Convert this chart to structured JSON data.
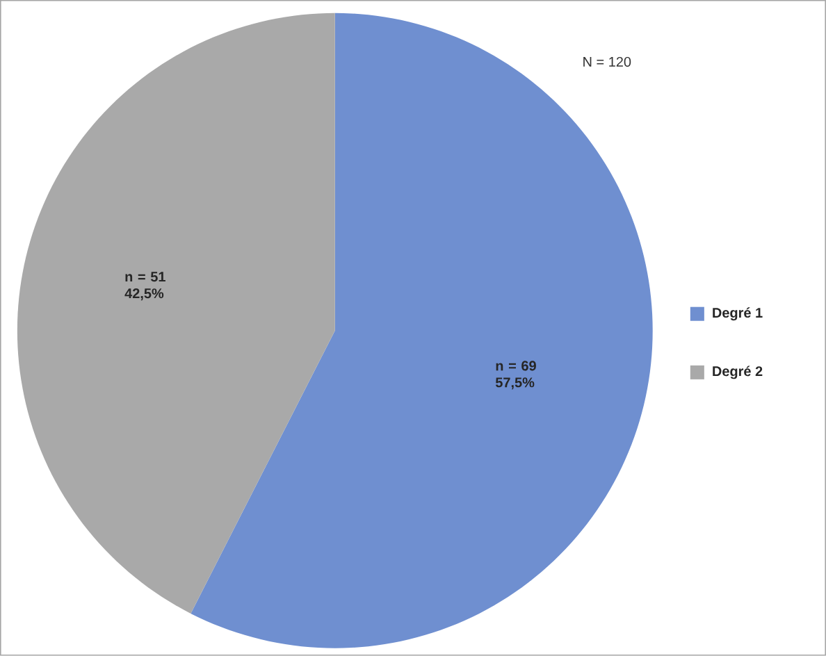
{
  "chart_data": {
    "type": "pie",
    "categories": [
      "Degré 1",
      "Degré 2"
    ],
    "values": [
      69,
      51
    ],
    "colors": [
      "#6f8fd0",
      "#a9a9a9"
    ],
    "value_labels": [
      "n = 69 57,5%",
      "n = 51 42,5%"
    ],
    "annotations": [
      "N = 120"
    ],
    "legend": "right"
  }
}
